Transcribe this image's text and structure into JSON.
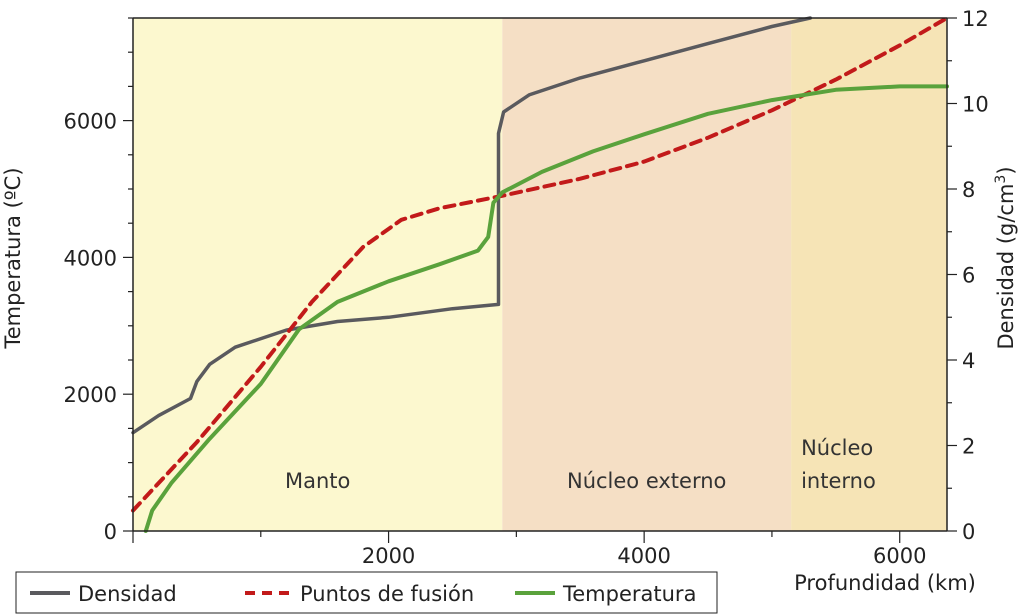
{
  "chart_data": {
    "type": "line",
    "xlabel": "Profundidad (km)",
    "ylabel_left": "Temperatura (ºC)",
    "ylabel_right_prefix": "Densidad (g/cm",
    "ylabel_right_sup": "3",
    "ylabel_right_suffix": ")",
    "xlim": [
      0,
      6370
    ],
    "ylim_left": [
      0,
      7500
    ],
    "ylim_right": [
      0,
      12
    ],
    "x_ticks": [
      2000,
      4000,
      6000
    ],
    "x_tick_labels": [
      "2000",
      "4000",
      "6000"
    ],
    "y_left_ticks": [
      0,
      2000,
      4000,
      6000
    ],
    "y_left_tick_labels": [
      "0",
      "2000",
      "4000",
      "6000"
    ],
    "y_right_ticks": [
      0,
      2,
      4,
      6,
      8,
      10,
      12
    ],
    "y_right_tick_labels": [
      "0",
      "2",
      "4",
      "6",
      "8",
      "10",
      "12"
    ],
    "regions": [
      {
        "label": "Manto",
        "label_lines": [
          "Manto"
        ],
        "x_start": 0,
        "x_end": 2890,
        "color": "#fcf8cf"
      },
      {
        "label": "Núcleo externo",
        "label_lines": [
          "Núcleo externo"
        ],
        "x_start": 2890,
        "x_end": 5150,
        "color": "#f5dfc5"
      },
      {
        "label": "Núcleo interno",
        "label_lines": [
          "Núcleo",
          "interno"
        ],
        "x_start": 5150,
        "x_end": 6370,
        "color": "#f6e4b6"
      }
    ],
    "legend": {
      "placement": "bottom-left",
      "entries": [
        {
          "name": "Densidad",
          "series": "densidad"
        },
        {
          "name": "Puntos de fusión",
          "series": "fusion"
        },
        {
          "name": "Temperatura",
          "series": "temperatura"
        }
      ]
    },
    "series": [
      {
        "key": "densidad",
        "name": "Densidad",
        "axis": "right",
        "color": "#5a5a5e",
        "dash": "none",
        "points": [
          [
            0,
            2.3
          ],
          [
            200,
            2.7
          ],
          [
            450,
            3.1
          ],
          [
            500,
            3.5
          ],
          [
            600,
            3.9
          ],
          [
            800,
            4.3
          ],
          [
            1200,
            4.7
          ],
          [
            1600,
            4.9
          ],
          [
            2000,
            5.0
          ],
          [
            2500,
            5.2
          ],
          [
            2860,
            5.3
          ],
          [
            2860,
            9.3
          ],
          [
            2900,
            9.8
          ],
          [
            3100,
            10.2
          ],
          [
            3500,
            10.6
          ],
          [
            4000,
            11.0
          ],
          [
            4500,
            11.4
          ],
          [
            5000,
            11.8
          ],
          [
            5300,
            12.0
          ]
        ]
      },
      {
        "key": "fusion",
        "name": "Puntos de fusión",
        "axis": "left",
        "color": "#c21a1a",
        "dash": "10,7",
        "points": [
          [
            0,
            300
          ],
          [
            500,
            1300
          ],
          [
            1000,
            2400
          ],
          [
            1400,
            3350
          ],
          [
            1800,
            4150
          ],
          [
            2100,
            4550
          ],
          [
            2400,
            4720
          ],
          [
            2890,
            4900
          ],
          [
            3500,
            5150
          ],
          [
            4000,
            5400
          ],
          [
            4500,
            5750
          ],
          [
            5000,
            6150
          ],
          [
            5500,
            6600
          ],
          [
            6000,
            7100
          ],
          [
            6370,
            7500
          ]
        ]
      },
      {
        "key": "temperatura",
        "name": "Temperatura",
        "axis": "left",
        "color": "#5aa23c",
        "dash": "none",
        "points": [
          [
            100,
            0
          ],
          [
            150,
            300
          ],
          [
            300,
            700
          ],
          [
            600,
            1350
          ],
          [
            1000,
            2150
          ],
          [
            1300,
            2950
          ],
          [
            1600,
            3350
          ],
          [
            2000,
            3650
          ],
          [
            2400,
            3900
          ],
          [
            2700,
            4100
          ],
          [
            2780,
            4300
          ],
          [
            2820,
            4800
          ],
          [
            2890,
            4950
          ],
          [
            3200,
            5250
          ],
          [
            3600,
            5550
          ],
          [
            4000,
            5800
          ],
          [
            4500,
            6100
          ],
          [
            5000,
            6300
          ],
          [
            5500,
            6450
          ],
          [
            6000,
            6500
          ],
          [
            6370,
            6500
          ]
        ]
      }
    ]
  }
}
